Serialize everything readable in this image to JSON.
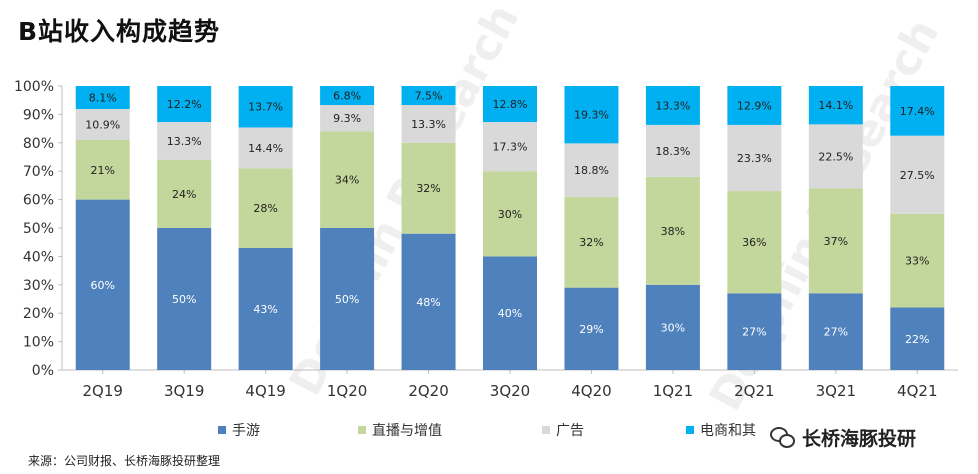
{
  "title": "B站收入构成趋势",
  "source": "来源：公司财报、长桥海豚投研整理",
  "brand": "长桥海豚投研",
  "watermark": "Dolphin Research",
  "colors": {
    "mobile_games": "#4f81bd",
    "live_vas": "#c3d69b",
    "ads": "#d9d9d9",
    "ecommerce": "#00b0f0"
  },
  "chart_data": {
    "type": "bar",
    "stacked": true,
    "categories": [
      "2Q19",
      "3Q19",
      "4Q19",
      "1Q20",
      "2Q20",
      "3Q20",
      "4Q20",
      "1Q21",
      "2Q21",
      "3Q21",
      "4Q21"
    ],
    "series": [
      {
        "name": "手游",
        "color": "#4f81bd",
        "values": [
          60,
          50,
          43,
          50,
          48,
          40,
          29,
          30,
          27,
          27,
          22
        ],
        "labels": [
          "60%",
          "50%",
          "43%",
          "50%",
          "48%",
          "40%",
          "29%",
          "30%",
          "27%",
          "27%",
          "22%"
        ]
      },
      {
        "name": "直播与增值",
        "color": "#c3d69b",
        "values": [
          21,
          24,
          28,
          34,
          32,
          30,
          32,
          38,
          36,
          37,
          33
        ],
        "labels": [
          "21%",
          "24%",
          "28%",
          "34%",
          "32%",
          "30%",
          "32%",
          "38%",
          "36%",
          "37%",
          "33%"
        ]
      },
      {
        "name": "广告",
        "color": "#d9d9d9",
        "values": [
          10.9,
          13.3,
          14.4,
          9.3,
          13.3,
          17.3,
          18.8,
          18.3,
          23.3,
          22.5,
          27.5
        ],
        "labels": [
          "10.9%",
          "13.3%",
          "14.4%",
          "9.3%",
          "13.3%",
          "17.3%",
          "18.8%",
          "18.3%",
          "23.3%",
          "22.5%",
          "27.5%"
        ]
      },
      {
        "name": "电商和其他",
        "color": "#00b0f0",
        "values": [
          8.1,
          12.2,
          13.7,
          6.8,
          7.5,
          12.8,
          19.3,
          13.3,
          12.9,
          14.1,
          17.4
        ],
        "labels": [
          "8.1%",
          "12.2%",
          "13.7%",
          "6.8%",
          "7.5%",
          "12.8%",
          "19.3%",
          "13.3%",
          "12.9%",
          "14.1%",
          "17.4%"
        ]
      }
    ],
    "legend_labels": [
      "手游",
      "直播与增值",
      "广告",
      "电商和其"
    ],
    "yticks": [
      "0%",
      "10%",
      "20%",
      "30%",
      "40%",
      "50%",
      "60%",
      "70%",
      "80%",
      "90%",
      "100%"
    ],
    "ylim": [
      0,
      100
    ],
    "grid": false,
    "legend_position": "bottom"
  }
}
